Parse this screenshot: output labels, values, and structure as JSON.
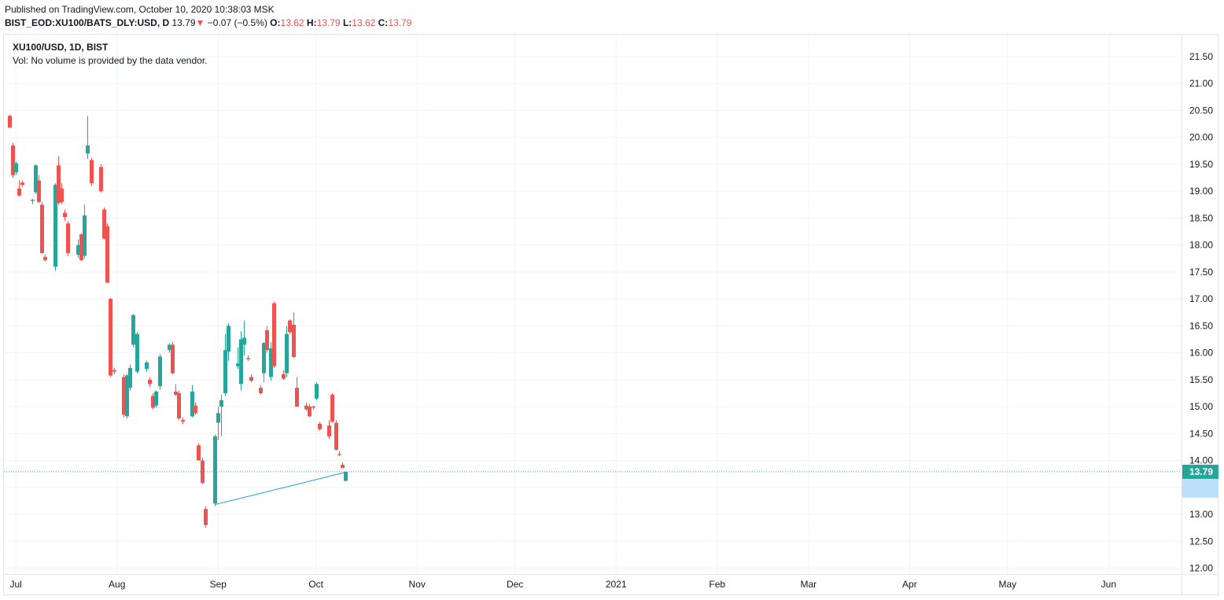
{
  "header": {
    "published": "Published on TradingView.com, October 10, 2020 10:38:03 MSK",
    "symbol": "BIST_EOD:XU100/BATS_DLY:USD, D",
    "last": "13.79",
    "change_arrow": "▼",
    "change": "−0.07 (−0.5%)",
    "o_label": "O:",
    "o_value": "13.62",
    "h_label": "H:",
    "h_value": "13.79",
    "l_label": "L:",
    "l_value": "13.62",
    "c_label": "C:",
    "c_value": "13.79"
  },
  "legend": {
    "title": "XU100/USD, 1D, BIST",
    "volume_note": "Vol: No volume is provided by the data vendor."
  },
  "colors": {
    "up": "#26a69a",
    "down": "#ef5350",
    "grid": "#f0f3fa",
    "trendline": "#2196f3",
    "price_line": "#26a69a",
    "last_label_bg": "#26a69a",
    "highlight_label_bg": "#bbdefb"
  },
  "chart_data": {
    "type": "candlestick",
    "title": "XU100/USD, 1D, BIST",
    "ylim": [
      12.0,
      21.5
    ],
    "y_ticks": [
      "12.00",
      "12.50",
      "13.00",
      "13.50",
      "14.00",
      "14.50",
      "15.00",
      "15.50",
      "16.00",
      "16.50",
      "17.00",
      "17.50",
      "18.00",
      "18.50",
      "19.00",
      "19.50",
      "20.00",
      "20.50",
      "21.00",
      "21.50"
    ],
    "x_labels": [
      {
        "label": "Jul",
        "date": "2020-07-01"
      },
      {
        "label": "Aug",
        "date": "2020-08-01"
      },
      {
        "label": "Sep",
        "date": "2020-09-01"
      },
      {
        "label": "Oct",
        "date": "2020-10-01"
      },
      {
        "label": "Nov",
        "date": "2020-11-01"
      },
      {
        "label": "Dec",
        "date": "2020-12-01"
      },
      {
        "label": "2021",
        "date": "2021-01-01"
      },
      {
        "label": "Feb",
        "date": "2021-02-01"
      },
      {
        "label": "Mar",
        "date": "2021-03-01"
      },
      {
        "label": "Apr",
        "date": "2021-04-01"
      },
      {
        "label": "May",
        "date": "2021-05-01"
      },
      {
        "label": "Jun",
        "date": "2021-06-01"
      }
    ],
    "x_range": [
      "2020-06-30",
      "2021-06-19"
    ],
    "candles": [
      {
        "date": "2020-06-29",
        "o": 20.4,
        "h": 20.42,
        "l": 20.18,
        "c": 20.18
      },
      {
        "date": "2020-06-30",
        "o": 19.85,
        "h": 19.9,
        "l": 19.25,
        "c": 19.3
      },
      {
        "date": "2020-07-01",
        "o": 19.35,
        "h": 19.55,
        "l": 19.3,
        "c": 19.52
      },
      {
        "date": "2020-07-02",
        "o": 19.05,
        "h": 19.2,
        "l": 18.9,
        "c": 18.92
      },
      {
        "date": "2020-07-03",
        "o": 19.16,
        "h": 19.2,
        "l": 19.08,
        "c": 19.12
      },
      {
        "date": "2020-07-06",
        "o": 18.82,
        "h": 18.86,
        "l": 18.76,
        "c": 18.84
      },
      {
        "date": "2020-07-07",
        "o": 18.98,
        "h": 19.5,
        "l": 18.95,
        "c": 19.48
      },
      {
        "date": "2020-07-08",
        "o": 19.2,
        "h": 19.3,
        "l": 18.78,
        "c": 18.8
      },
      {
        "date": "2020-07-09",
        "o": 18.75,
        "h": 18.8,
        "l": 17.85,
        "c": 17.85
      },
      {
        "date": "2020-07-10",
        "o": 17.78,
        "h": 17.82,
        "l": 17.7,
        "c": 17.72
      },
      {
        "date": "2020-07-13",
        "o": 17.6,
        "h": 19.15,
        "l": 17.52,
        "c": 19.12
      },
      {
        "date": "2020-07-14",
        "o": 19.48,
        "h": 19.65,
        "l": 18.75,
        "c": 18.78
      },
      {
        "date": "2020-07-15",
        "o": 19.05,
        "h": 19.15,
        "l": 18.76,
        "c": 18.8
      },
      {
        "date": "2020-07-16",
        "o": 18.6,
        "h": 18.66,
        "l": 18.45,
        "c": 18.52
      },
      {
        "date": "2020-07-17",
        "o": 18.4,
        "h": 18.45,
        "l": 17.8,
        "c": 17.85
      },
      {
        "date": "2020-07-20",
        "o": 17.82,
        "h": 18.1,
        "l": 17.76,
        "c": 18.0
      },
      {
        "date": "2020-07-21",
        "o": 18.2,
        "h": 18.22,
        "l": 17.7,
        "c": 17.72
      },
      {
        "date": "2020-07-22",
        "o": 17.8,
        "h": 18.75,
        "l": 17.75,
        "c": 18.55
      },
      {
        "date": "2020-07-23",
        "o": 19.7,
        "h": 20.4,
        "l": 19.6,
        "c": 19.85
      },
      {
        "date": "2020-07-24",
        "o": 19.58,
        "h": 19.62,
        "l": 19.1,
        "c": 19.15
      },
      {
        "date": "2020-07-27",
        "o": 19.45,
        "h": 19.5,
        "l": 18.98,
        "c": 19.0
      },
      {
        "date": "2020-07-28",
        "o": 18.66,
        "h": 18.7,
        "l": 18.1,
        "c": 18.12
      },
      {
        "date": "2020-07-29",
        "o": 18.35,
        "h": 18.4,
        "l": 17.3,
        "c": 17.3
      },
      {
        "date": "2020-07-30",
        "o": 17.0,
        "h": 17.02,
        "l": 15.55,
        "c": 15.58
      },
      {
        "date": "2020-07-31",
        "o": 15.68,
        "h": 15.72,
        "l": 15.6,
        "c": 15.65
      },
      {
        "date": "2020-08-03",
        "o": 15.55,
        "h": 15.6,
        "l": 14.8,
        "c": 14.85
      },
      {
        "date": "2020-08-04",
        "o": 14.82,
        "h": 15.6,
        "l": 14.78,
        "c": 15.58
      },
      {
        "date": "2020-08-05",
        "o": 15.35,
        "h": 15.78,
        "l": 15.3,
        "c": 15.72
      },
      {
        "date": "2020-08-06",
        "o": 16.15,
        "h": 16.72,
        "l": 16.1,
        "c": 16.7
      },
      {
        "date": "2020-08-07",
        "o": 15.65,
        "h": 16.38,
        "l": 15.62,
        "c": 16.35
      },
      {
        "date": "2020-08-10",
        "o": 15.7,
        "h": 15.85,
        "l": 15.65,
        "c": 15.82
      },
      {
        "date": "2020-08-11",
        "o": 15.5,
        "h": 15.55,
        "l": 15.36,
        "c": 15.42
      },
      {
        "date": "2020-08-12",
        "o": 15.2,
        "h": 15.25,
        "l": 14.95,
        "c": 14.98
      },
      {
        "date": "2020-08-13",
        "o": 15.02,
        "h": 15.3,
        "l": 14.98,
        "c": 15.28
      },
      {
        "date": "2020-08-14",
        "o": 15.38,
        "h": 15.98,
        "l": 15.32,
        "c": 15.93
      },
      {
        "date": "2020-08-17",
        "o": 16.05,
        "h": 16.18,
        "l": 16.0,
        "c": 16.15
      },
      {
        "date": "2020-08-18",
        "o": 16.15,
        "h": 16.2,
        "l": 15.6,
        "c": 15.62
      },
      {
        "date": "2020-08-19",
        "o": 15.28,
        "h": 15.42,
        "l": 15.2,
        "c": 15.22
      },
      {
        "date": "2020-08-20",
        "o": 15.25,
        "h": 15.3,
        "l": 14.75,
        "c": 14.78
      },
      {
        "date": "2020-08-21",
        "o": 14.75,
        "h": 14.8,
        "l": 14.68,
        "c": 14.72
      },
      {
        "date": "2020-08-24",
        "o": 14.82,
        "h": 15.4,
        "l": 14.8,
        "c": 15.28
      },
      {
        "date": "2020-08-25",
        "o": 15.02,
        "h": 15.08,
        "l": 14.85,
        "c": 14.88
      },
      {
        "date": "2020-08-26",
        "o": 14.28,
        "h": 14.32,
        "l": 14.0,
        "c": 14.0
      },
      {
        "date": "2020-08-27",
        "o": 14.0,
        "h": 14.05,
        "l": 13.56,
        "c": 13.58
      },
      {
        "date": "2020-08-28",
        "o": 13.1,
        "h": 13.15,
        "l": 12.75,
        "c": 12.8
      },
      {
        "date": "2020-08-31",
        "o": 13.2,
        "h": 14.48,
        "l": 13.15,
        "c": 14.45
      },
      {
        "date": "2020-09-01",
        "o": 14.7,
        "h": 15.0,
        "l": 14.38,
        "c": 14.88
      },
      {
        "date": "2020-09-02",
        "o": 15.0,
        "h": 15.22,
        "l": 14.45,
        "c": 15.12
      },
      {
        "date": "2020-09-03",
        "o": 15.25,
        "h": 16.35,
        "l": 15.2,
        "c": 16.05
      },
      {
        "date": "2020-09-04",
        "o": 16.02,
        "h": 16.55,
        "l": 15.85,
        "c": 16.5
      },
      {
        "date": "2020-09-07",
        "o": 15.75,
        "h": 16.1,
        "l": 15.7,
        "c": 15.8
      },
      {
        "date": "2020-09-08",
        "o": 15.42,
        "h": 16.4,
        "l": 15.3,
        "c": 16.25
      },
      {
        "date": "2020-09-09",
        "o": 16.15,
        "h": 16.6,
        "l": 15.95,
        "c": 16.28
      },
      {
        "date": "2020-09-10",
        "o": 15.9,
        "h": 15.95,
        "l": 15.85,
        "c": 15.88
      },
      {
        "date": "2020-09-11",
        "o": 15.55,
        "h": 15.6,
        "l": 15.45,
        "c": 15.48
      },
      {
        "date": "2020-09-14",
        "o": 15.35,
        "h": 15.4,
        "l": 15.22,
        "c": 15.25
      },
      {
        "date": "2020-09-15",
        "o": 15.62,
        "h": 16.2,
        "l": 15.45,
        "c": 16.18
      },
      {
        "date": "2020-09-16",
        "o": 16.42,
        "h": 16.5,
        "l": 16.0,
        "c": 16.05
      },
      {
        "date": "2020-09-17",
        "o": 15.55,
        "h": 16.2,
        "l": 15.48,
        "c": 16.08
      },
      {
        "date": "2020-09-18",
        "o": 16.92,
        "h": 16.95,
        "l": 15.72,
        "c": 15.75
      },
      {
        "date": "2020-09-21",
        "o": 15.6,
        "h": 15.68,
        "l": 15.5,
        "c": 15.52
      },
      {
        "date": "2020-09-22",
        "o": 15.62,
        "h": 16.5,
        "l": 15.55,
        "c": 16.35
      },
      {
        "date": "2020-09-23",
        "o": 16.6,
        "h": 16.62,
        "l": 16.35,
        "c": 16.38
      },
      {
        "date": "2020-09-24",
        "o": 16.52,
        "h": 16.75,
        "l": 15.9,
        "c": 15.92
      },
      {
        "date": "2020-09-25",
        "o": 15.35,
        "h": 15.55,
        "l": 15.0,
        "c": 15.0
      },
      {
        "date": "2020-09-28",
        "o": 15.02,
        "h": 15.08,
        "l": 14.92,
        "c": 14.95
      },
      {
        "date": "2020-09-29",
        "o": 15.0,
        "h": 15.05,
        "l": 14.8,
        "c": 14.82
      },
      {
        "date": "2020-09-30",
        "o": 15.0,
        "h": 15.02,
        "l": 14.95,
        "c": 14.98
      },
      {
        "date": "2020-10-01",
        "o": 15.15,
        "h": 15.45,
        "l": 15.12,
        "c": 15.42
      },
      {
        "date": "2020-10-02",
        "o": 14.68,
        "h": 14.72,
        "l": 14.55,
        "c": 14.58
      },
      {
        "date": "2020-10-05",
        "o": 14.65,
        "h": 14.75,
        "l": 14.4,
        "c": 14.45
      },
      {
        "date": "2020-10-06",
        "o": 15.22,
        "h": 15.25,
        "l": 14.7,
        "c": 14.72
      },
      {
        "date": "2020-10-07",
        "o": 14.7,
        "h": 14.75,
        "l": 14.18,
        "c": 14.2
      },
      {
        "date": "2020-10-08",
        "o": 14.12,
        "h": 14.18,
        "l": 14.08,
        "c": 14.1
      },
      {
        "date": "2020-10-09",
        "o": 13.92,
        "h": 13.96,
        "l": 13.86,
        "c": 13.86
      },
      {
        "date": "2020-10-10",
        "o": 13.62,
        "h": 13.79,
        "l": 13.62,
        "c": 13.79
      }
    ],
    "trendline": {
      "from": {
        "date": "2020-08-31",
        "price": 13.18
      },
      "to": {
        "date": "2020-10-10",
        "price": 13.78
      }
    },
    "last_price": "13.79",
    "highlight_price": "13.50",
    "grid": true
  }
}
